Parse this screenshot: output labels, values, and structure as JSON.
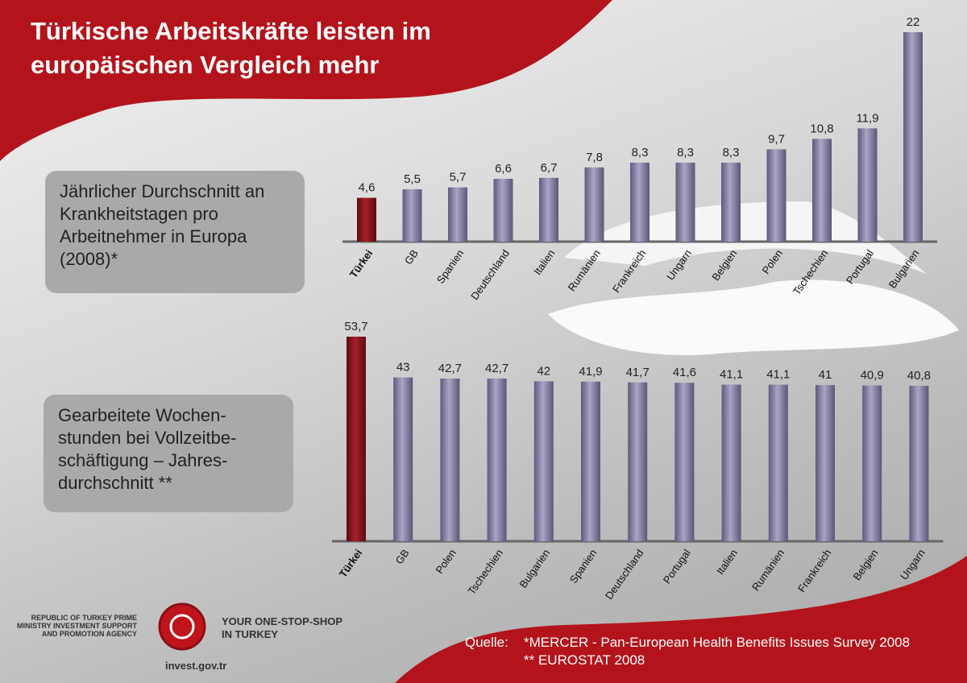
{
  "title_line1": "Türkische Arbeitskräfte leisten im",
  "title_line2": "europäischen Vergleich mehr",
  "box1": "Jährlicher Durchschnitt an Krankheitstagen pro Arbeitnehmer in Europa (2008)*",
  "box2": "Gearbeitete Wochen-stunden bei Vollzeitbe-schäftigung – Jahres-durchschnitt **",
  "colors": {
    "red": "#b3141c",
    "highlight": "#7e1218",
    "bar": "#8a86a6"
  },
  "chart_data": [
    {
      "type": "bar",
      "categories": [
        "Türkei",
        "GB",
        "Spanien",
        "Deutschland",
        "Italien",
        "Rumänien",
        "Frankreich",
        "Ungarn",
        "Belgien",
        "Polen",
        "Tschechien",
        "Portugal",
        "Bulgarien"
      ],
      "values": [
        4.6,
        5.5,
        5.7,
        6.6,
        6.7,
        7.8,
        8.3,
        8.3,
        8.3,
        9.7,
        10.8,
        11.9,
        22
      ],
      "labels": [
        "4,6",
        "5,5",
        "5,7",
        "6,6",
        "6,7",
        "7,8",
        "8,3",
        "8,3",
        "8,3",
        "9,7",
        "10,8",
        "11,9",
        "22"
      ],
      "highlight": "Türkei"
    },
    {
      "type": "bar",
      "categories": [
        "Türkei",
        "GB",
        "Polen",
        "Tschechien",
        "Bulgarien",
        "Spanien",
        "Deutschland",
        "Portugal",
        "Italien",
        "Rumänien",
        "Frankreich",
        "Belgien",
        "Ungarn"
      ],
      "values": [
        53.7,
        43,
        42.7,
        42.7,
        42,
        41.9,
        41.7,
        41.6,
        41.1,
        41.1,
        41,
        40.9,
        40.8
      ],
      "labels": [
        "53,7",
        "43",
        "42,7",
        "42,7",
        "42",
        "41,9",
        "41,7",
        "41,6",
        "41,1",
        "41,1",
        "41",
        "40,9",
        "40,8"
      ],
      "highlight": "Türkei"
    }
  ],
  "footer": {
    "source_label": "Quelle:",
    "source1": "*MERCER - Pan-European Health Benefits Issues Survey 2008",
    "source2": "** EUROSTAT 2008"
  },
  "logo": {
    "agency": "REPUBLIC OF TURKEY PRIME MINISTRY INVESTMENT SUPPORT AND PROMOTION AGENCY",
    "slogan1": "YOUR ONE-STOP-SHOP",
    "slogan2": "IN TURKEY",
    "url": "invest.gov.tr"
  }
}
